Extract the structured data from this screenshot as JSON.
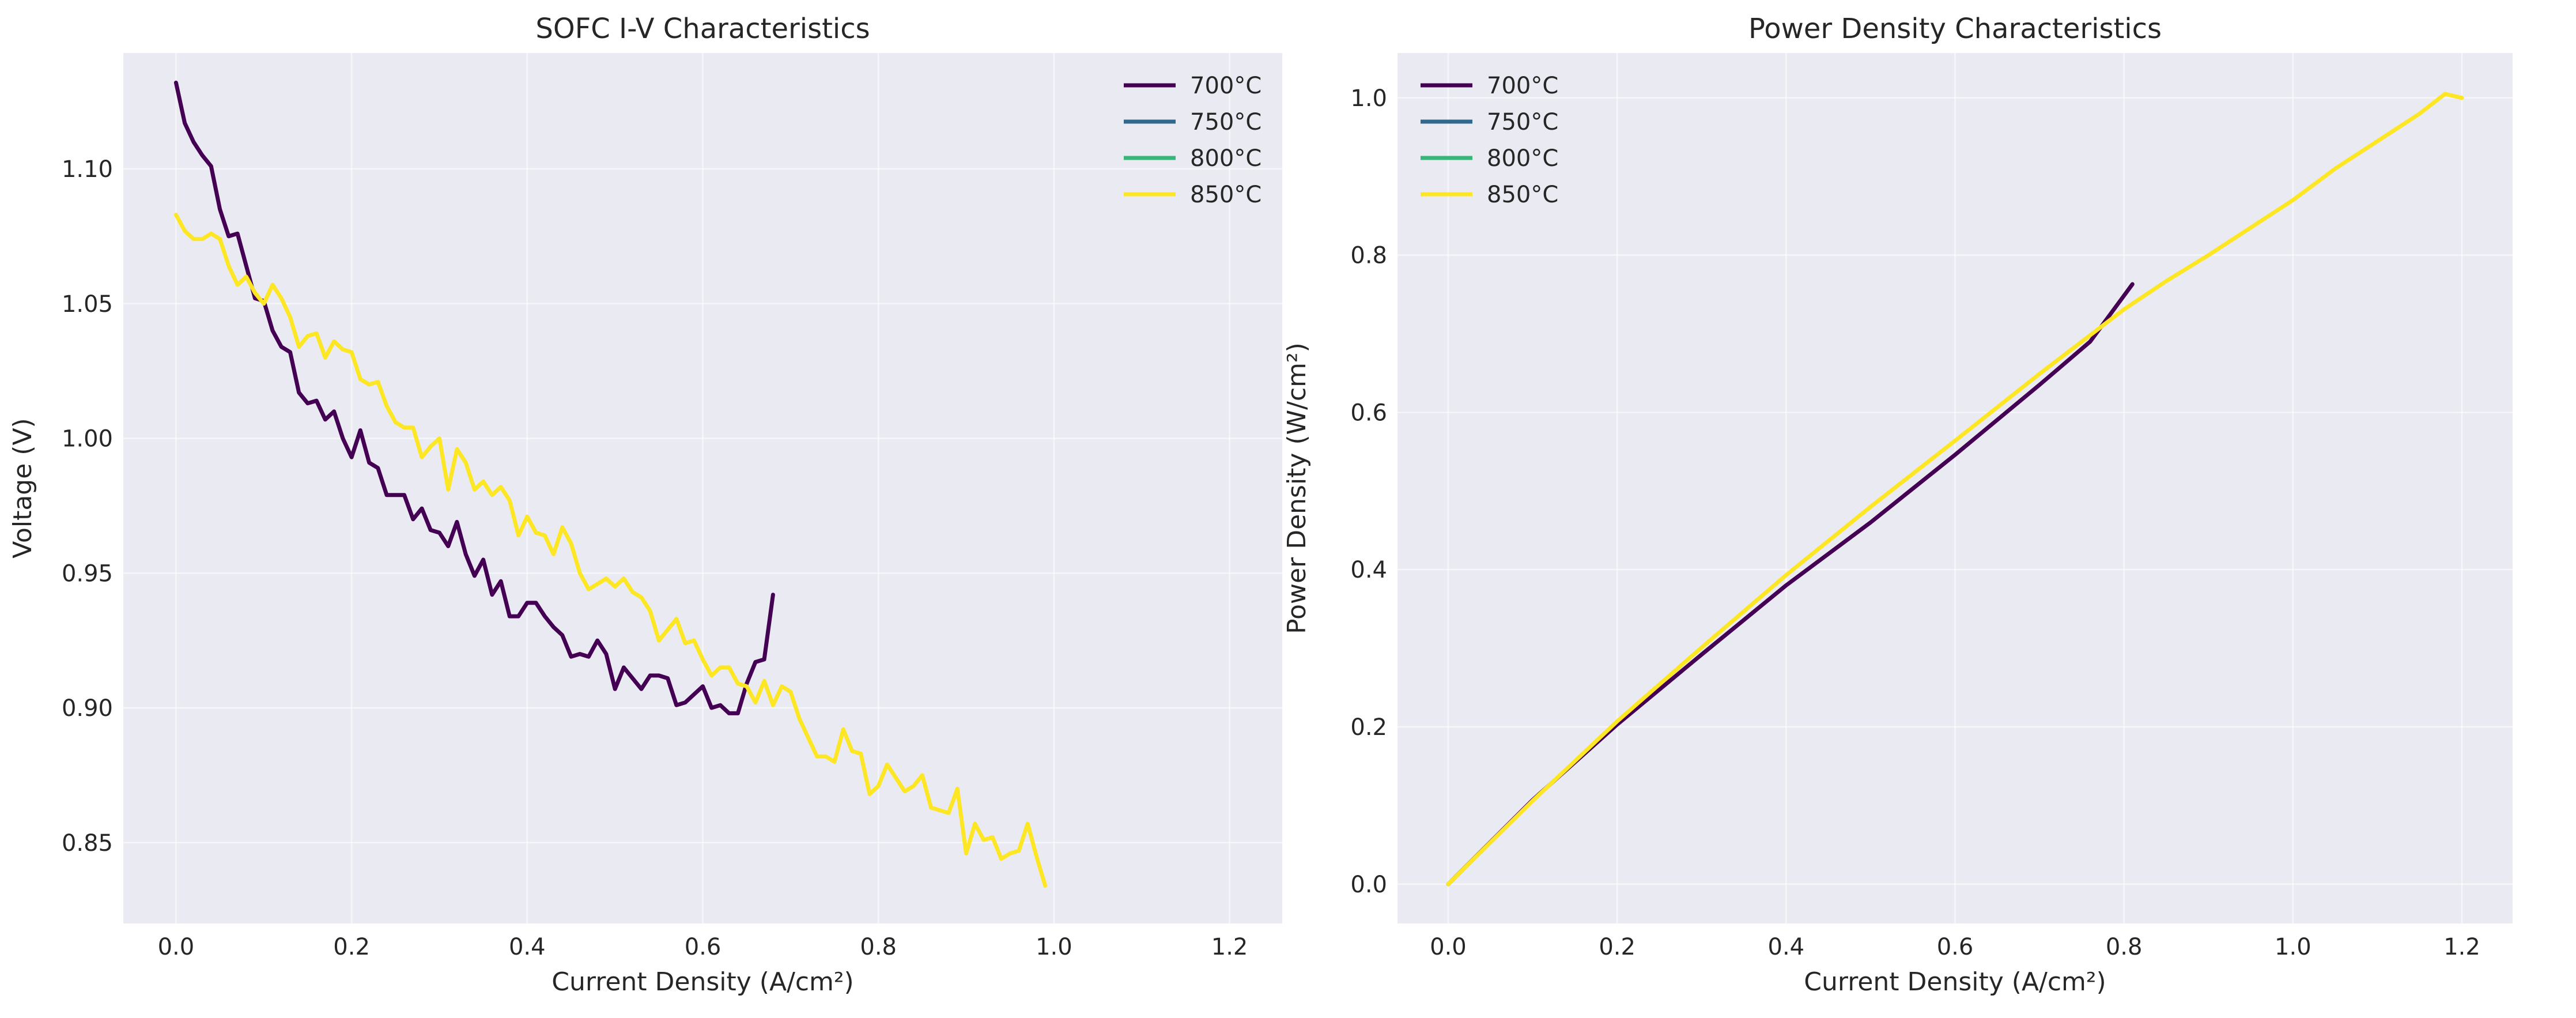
{
  "chart_data": [
    {
      "type": "line",
      "title": "SOFC I-V Characteristics",
      "xlabel": "Current Density (A/cm²)",
      "ylabel": "Voltage (V)",
      "xlim": [
        -0.06,
        1.26
      ],
      "ylim": [
        0.82,
        1.143
      ],
      "xticks": [
        0.0,
        0.2,
        0.4,
        0.6,
        0.8,
        1.0,
        1.2
      ],
      "xtick_labels": [
        "0.0",
        "0.2",
        "0.4",
        "0.6",
        "0.8",
        "1.0",
        "1.2"
      ],
      "yticks": [
        0.85,
        0.9,
        0.95,
        1.0,
        1.05,
        1.1
      ],
      "ytick_labels": [
        "0.85",
        "0.90",
        "0.95",
        "1.00",
        "1.05",
        "1.10"
      ],
      "grid": true,
      "legend": "top-right",
      "series": [
        {
          "name": "700°C",
          "color": "#440154",
          "points": [
            [
              0.0,
              1.132
            ],
            [
              0.01,
              1.117
            ],
            [
              0.02,
              1.11
            ],
            [
              0.03,
              1.105
            ],
            [
              0.04,
              1.101
            ],
            [
              0.05,
              1.085
            ],
            [
              0.06,
              1.075
            ],
            [
              0.07,
              1.076
            ],
            [
              0.08,
              1.064
            ],
            [
              0.09,
              1.052
            ],
            [
              0.1,
              1.051
            ],
            [
              0.11,
              1.04
            ],
            [
              0.12,
              1.034
            ],
            [
              0.13,
              1.032
            ],
            [
              0.14,
              1.017
            ],
            [
              0.15,
              1.013
            ],
            [
              0.16,
              1.014
            ],
            [
              0.17,
              1.007
            ],
            [
              0.18,
              1.01
            ],
            [
              0.19,
              1.0
            ],
            [
              0.2,
              0.993
            ],
            [
              0.21,
              1.003
            ],
            [
              0.22,
              0.991
            ],
            [
              0.23,
              0.989
            ],
            [
              0.24,
              0.979
            ],
            [
              0.25,
              0.979
            ],
            [
              0.26,
              0.979
            ],
            [
              0.27,
              0.97
            ],
            [
              0.28,
              0.974
            ],
            [
              0.29,
              0.966
            ],
            [
              0.3,
              0.965
            ],
            [
              0.31,
              0.96
            ],
            [
              0.32,
              0.969
            ],
            [
              0.33,
              0.957
            ],
            [
              0.34,
              0.949
            ],
            [
              0.35,
              0.955
            ],
            [
              0.36,
              0.942
            ],
            [
              0.37,
              0.947
            ],
            [
              0.38,
              0.934
            ],
            [
              0.39,
              0.934
            ],
            [
              0.4,
              0.939
            ],
            [
              0.41,
              0.939
            ],
            [
              0.42,
              0.934
            ],
            [
              0.43,
              0.93
            ],
            [
              0.44,
              0.927
            ],
            [
              0.45,
              0.919
            ],
            [
              0.46,
              0.92
            ],
            [
              0.47,
              0.919
            ],
            [
              0.48,
              0.925
            ],
            [
              0.49,
              0.92
            ],
            [
              0.5,
              0.907
            ],
            [
              0.51,
              0.915
            ],
            [
              0.52,
              0.911
            ],
            [
              0.53,
              0.907
            ],
            [
              0.54,
              0.912
            ],
            [
              0.55,
              0.912
            ],
            [
              0.56,
              0.911
            ],
            [
              0.57,
              0.901
            ],
            [
              0.58,
              0.902
            ],
            [
              0.59,
              0.905
            ],
            [
              0.6,
              0.908
            ],
            [
              0.61,
              0.9
            ],
            [
              0.62,
              0.901
            ],
            [
              0.63,
              0.898
            ],
            [
              0.64,
              0.898
            ],
            [
              0.65,
              0.909
            ],
            [
              0.66,
              0.917
            ],
            [
              0.67,
              0.918
            ],
            [
              0.68,
              0.942
            ]
          ]
        },
        {
          "name": "750°C",
          "color": "#31688e",
          "points": []
        },
        {
          "name": "800°C",
          "color": "#35b779",
          "points": []
        },
        {
          "name": "850°C",
          "color": "#fde725",
          "points": [
            [
              0.0,
              1.083
            ],
            [
              0.01,
              1.077
            ],
            [
              0.02,
              1.074
            ],
            [
              0.03,
              1.074
            ],
            [
              0.04,
              1.076
            ],
            [
              0.05,
              1.074
            ],
            [
              0.06,
              1.064
            ],
            [
              0.07,
              1.057
            ],
            [
              0.08,
              1.06
            ],
            [
              0.09,
              1.054
            ],
            [
              0.1,
              1.05
            ],
            [
              0.11,
              1.057
            ],
            [
              0.12,
              1.052
            ],
            [
              0.13,
              1.045
            ],
            [
              0.14,
              1.034
            ],
            [
              0.15,
              1.038
            ],
            [
              0.16,
              1.039
            ],
            [
              0.17,
              1.03
            ],
            [
              0.18,
              1.036
            ],
            [
              0.19,
              1.033
            ],
            [
              0.2,
              1.032
            ],
            [
              0.21,
              1.022
            ],
            [
              0.22,
              1.02
            ],
            [
              0.23,
              1.021
            ],
            [
              0.24,
              1.012
            ],
            [
              0.25,
              1.006
            ],
            [
              0.26,
              1.004
            ],
            [
              0.27,
              1.004
            ],
            [
              0.28,
              0.993
            ],
            [
              0.29,
              0.997
            ],
            [
              0.3,
              1.0
            ],
            [
              0.31,
              0.981
            ],
            [
              0.32,
              0.996
            ],
            [
              0.33,
              0.991
            ],
            [
              0.34,
              0.981
            ],
            [
              0.35,
              0.984
            ],
            [
              0.36,
              0.979
            ],
            [
              0.37,
              0.982
            ],
            [
              0.38,
              0.977
            ],
            [
              0.39,
              0.964
            ],
            [
              0.4,
              0.971
            ],
            [
              0.41,
              0.965
            ],
            [
              0.42,
              0.964
            ],
            [
              0.43,
              0.957
            ],
            [
              0.44,
              0.967
            ],
            [
              0.45,
              0.961
            ],
            [
              0.46,
              0.95
            ],
            [
              0.47,
              0.944
            ],
            [
              0.48,
              0.946
            ],
            [
              0.49,
              0.948
            ],
            [
              0.5,
              0.945
            ],
            [
              0.51,
              0.948
            ],
            [
              0.52,
              0.943
            ],
            [
              0.53,
              0.941
            ],
            [
              0.54,
              0.936
            ],
            [
              0.55,
              0.925
            ],
            [
              0.56,
              0.929
            ],
            [
              0.57,
              0.933
            ],
            [
              0.58,
              0.924
            ],
            [
              0.59,
              0.925
            ],
            [
              0.6,
              0.918
            ],
            [
              0.61,
              0.912
            ],
            [
              0.62,
              0.915
            ],
            [
              0.63,
              0.915
            ],
            [
              0.64,
              0.909
            ],
            [
              0.65,
              0.908
            ],
            [
              0.66,
              0.902
            ],
            [
              0.67,
              0.91
            ],
            [
              0.68,
              0.901
            ],
            [
              0.69,
              0.908
            ],
            [
              0.7,
              0.906
            ],
            [
              0.71,
              0.896
            ],
            [
              0.72,
              0.889
            ],
            [
              0.73,
              0.882
            ],
            [
              0.74,
              0.882
            ],
            [
              0.75,
              0.88
            ],
            [
              0.76,
              0.892
            ],
            [
              0.77,
              0.884
            ],
            [
              0.78,
              0.883
            ],
            [
              0.79,
              0.868
            ],
            [
              0.8,
              0.871
            ],
            [
              0.81,
              0.879
            ],
            [
              0.82,
              0.874
            ],
            [
              0.83,
              0.869
            ],
            [
              0.84,
              0.871
            ],
            [
              0.85,
              0.875
            ],
            [
              0.86,
              0.863
            ],
            [
              0.87,
              0.862
            ],
            [
              0.88,
              0.861
            ],
            [
              0.89,
              0.87
            ],
            [
              0.9,
              0.846
            ],
            [
              0.91,
              0.857
            ],
            [
              0.92,
              0.851
            ],
            [
              0.93,
              0.852
            ],
            [
              0.94,
              0.844
            ],
            [
              0.95,
              0.846
            ],
            [
              0.96,
              0.847
            ],
            [
              0.97,
              0.857
            ],
            [
              0.98,
              0.845
            ],
            [
              0.99,
              0.834
            ]
          ]
        }
      ]
    },
    {
      "type": "line",
      "title": "Power Density Characteristics",
      "xlabel": "Current Density (A/cm²)",
      "ylabel": "Power Density (W/cm²)",
      "xlim": [
        -0.06,
        1.26
      ],
      "ylim": [
        -0.05,
        1.057
      ],
      "xticks": [
        0.0,
        0.2,
        0.4,
        0.6,
        0.8,
        1.0,
        1.2
      ],
      "xtick_labels": [
        "0.0",
        "0.2",
        "0.4",
        "0.6",
        "0.8",
        "1.0",
        "1.2"
      ],
      "yticks": [
        0.0,
        0.2,
        0.4,
        0.6,
        0.8,
        1.0
      ],
      "ytick_labels": [
        "0.0",
        "0.2",
        "0.4",
        "0.6",
        "0.8",
        "1.0"
      ],
      "grid": true,
      "legend": "top-left",
      "series": [
        {
          "name": "700°C",
          "color": "#440154",
          "points": [
            [
              0.0,
              0.0
            ],
            [
              0.1,
              0.107
            ],
            [
              0.2,
              0.203
            ],
            [
              0.3,
              0.292
            ],
            [
              0.4,
              0.38
            ],
            [
              0.5,
              0.46
            ],
            [
              0.6,
              0.546
            ],
            [
              0.7,
              0.635
            ],
            [
              0.76,
              0.69
            ],
            [
              0.81,
              0.763
            ]
          ]
        },
        {
          "name": "750°C",
          "color": "#31688e",
          "points": []
        },
        {
          "name": "800°C",
          "color": "#35b779",
          "points": []
        },
        {
          "name": "850°C",
          "color": "#fde725",
          "points": [
            [
              0.0,
              0.0
            ],
            [
              0.1,
              0.106
            ],
            [
              0.2,
              0.207
            ],
            [
              0.3,
              0.301
            ],
            [
              0.4,
              0.393
            ],
            [
              0.5,
              0.48
            ],
            [
              0.6,
              0.564
            ],
            [
              0.7,
              0.649
            ],
            [
              0.8,
              0.731
            ],
            [
              0.85,
              0.767
            ],
            [
              0.9,
              0.8
            ],
            [
              0.95,
              0.835
            ],
            [
              1.0,
              0.87
            ],
            [
              1.05,
              0.91
            ],
            [
              1.1,
              0.945
            ],
            [
              1.15,
              0.98
            ],
            [
              1.18,
              1.005
            ],
            [
              1.2,
              1.0
            ]
          ]
        }
      ]
    }
  ]
}
